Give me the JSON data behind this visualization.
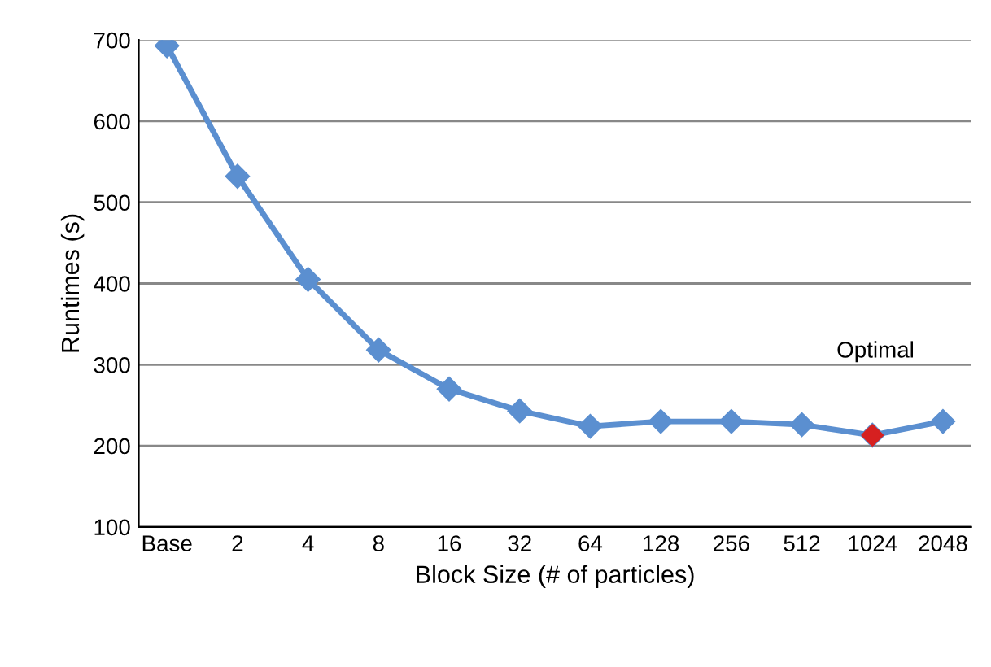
{
  "chart_data": {
    "type": "line",
    "xlabel": "Block Size (# of particles)",
    "ylabel": "Runtimes (s)",
    "categories": [
      "Base",
      "2",
      "4",
      "8",
      "16",
      "32",
      "64",
      "128",
      "256",
      "512",
      "1024",
      "2048"
    ],
    "series": [
      {
        "color": "#5b8fd0",
        "values": [
          693,
          532,
          405,
          318,
          270,
          243,
          224,
          230,
          230,
          226,
          213,
          230
        ]
      },
      {
        "type": "scatter",
        "color": "#d62020",
        "values": [
          null,
          null,
          null,
          null,
          null,
          null,
          null,
          null,
          null,
          null,
          213,
          null
        ]
      }
    ],
    "ylim": [
      100,
      700
    ],
    "yticks": [
      100,
      200,
      300,
      400,
      500,
      600,
      700
    ],
    "grid": "y",
    "marker": "diamond",
    "line_style": "solid",
    "annotations": [
      "Optimal"
    ]
  }
}
